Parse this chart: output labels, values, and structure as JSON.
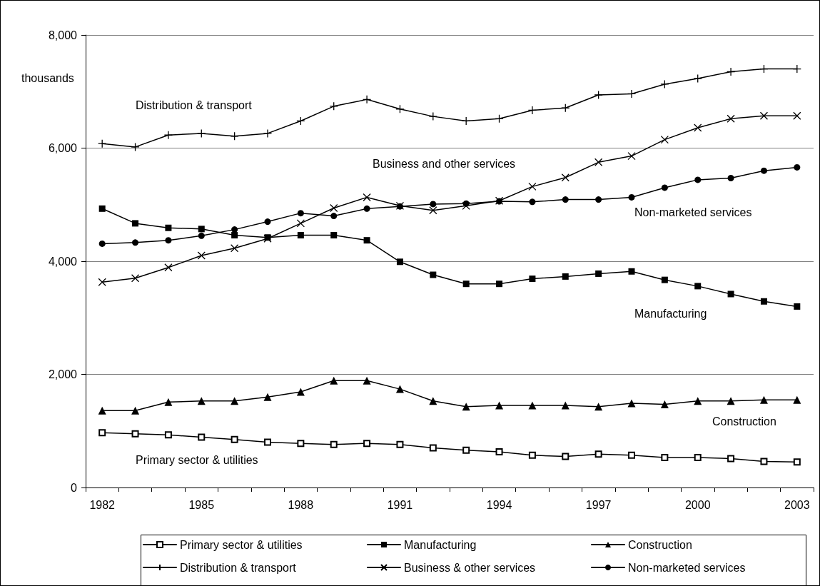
{
  "chart_data": {
    "type": "line",
    "ylabel": "thousands",
    "categories": [
      "1982",
      null,
      null,
      "1985",
      null,
      null,
      "1988",
      null,
      null,
      "1991",
      null,
      null,
      "1994",
      null,
      null,
      "1997",
      null,
      null,
      "2000",
      null,
      null,
      "2003"
    ],
    "series": [
      {
        "name": "Primary sector & utilities",
        "color": "#000000",
        "marker": "square-open",
        "values": [
          970,
          950,
          930,
          890,
          850,
          800,
          780,
          760,
          780,
          760,
          700,
          660,
          630,
          570,
          550,
          590,
          570,
          530,
          530,
          510,
          460,
          450
        ]
      },
      {
        "name": "Manufacturing",
        "color": "#000000",
        "marker": "square",
        "values": [
          4930,
          4670,
          4590,
          4570,
          4460,
          4420,
          4460,
          4460,
          4370,
          3990,
          3760,
          3600,
          3600,
          3690,
          3730,
          3780,
          3820,
          3670,
          3560,
          3420,
          3290,
          3200
        ]
      },
      {
        "name": "Construction",
        "color": "#000000",
        "marker": "triangle",
        "values": [
          1360,
          1360,
          1510,
          1530,
          1530,
          1600,
          1690,
          1890,
          1890,
          1740,
          1530,
          1430,
          1450,
          1450,
          1450,
          1430,
          1490,
          1470,
          1530,
          1530,
          1550,
          1550
        ]
      },
      {
        "name": "Distribution & transport",
        "color": "#000000",
        "marker": "plus",
        "values": [
          6080,
          6020,
          6230,
          6260,
          6210,
          6260,
          6480,
          6740,
          6860,
          6690,
          6560,
          6480,
          6520,
          6670,
          6710,
          6940,
          6960,
          7130,
          7230,
          7350,
          7400,
          7400
        ]
      },
      {
        "name": "Business & other services",
        "color": "#000000",
        "marker": "x",
        "values": [
          3630,
          3700,
          3890,
          4100,
          4230,
          4400,
          4670,
          4940,
          5130,
          4980,
          4900,
          4980,
          5070,
          5320,
          5480,
          5750,
          5860,
          6150,
          6360,
          6520,
          6570,
          6570
        ]
      },
      {
        "name": "Non-marketed services",
        "color": "#000000",
        "marker": "circle",
        "values": [
          4310,
          4330,
          4370,
          4450,
          4560,
          4700,
          4850,
          4800,
          4930,
          4970,
          5010,
          5020,
          5060,
          5050,
          5090,
          5090,
          5130,
          5300,
          5440,
          5470,
          5600,
          5660
        ]
      }
    ],
    "annotations": [
      "Distribution & transport",
      "Business and other services",
      "Non-marketed services",
      "Manufacturing",
      "Construction",
      "Primary sector & utilities"
    ],
    "ylim": [
      0,
      8000
    ],
    "yticks": [
      {
        "value": 0,
        "label": "0"
      },
      {
        "value": 2000,
        "label": "2,000"
      },
      {
        "value": 4000,
        "label": "4,000"
      },
      {
        "value": 6000,
        "label": "6,000"
      },
      {
        "value": 8000,
        "label": "8,000"
      }
    ],
    "grid": "y",
    "legend": "bottom"
  }
}
